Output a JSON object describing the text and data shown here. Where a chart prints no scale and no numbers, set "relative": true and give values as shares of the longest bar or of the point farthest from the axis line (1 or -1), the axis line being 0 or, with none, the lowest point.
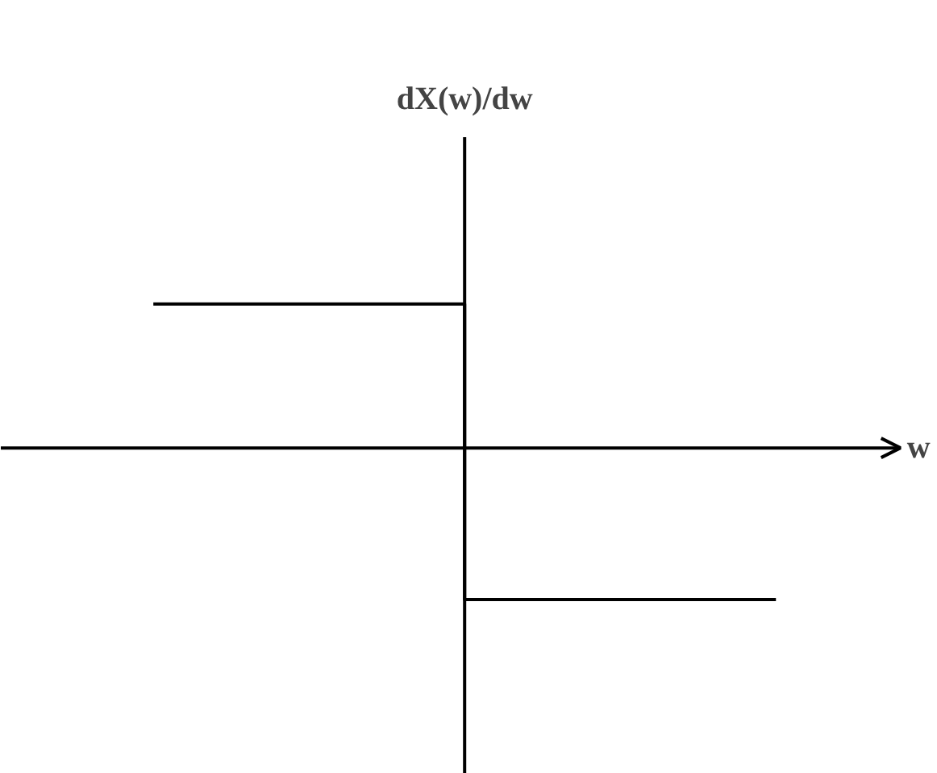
{
  "chart_data": {
    "type": "step",
    "relative": true,
    "xlabel": "w",
    "annotations": [
      "dX(w)/dw"
    ],
    "categories": [
      null,
      null,
      null
    ],
    "series": [
      {
        "color": "#000000",
        "values": [
          0.95,
          -1,
          -1
        ]
      }
    ]
  }
}
